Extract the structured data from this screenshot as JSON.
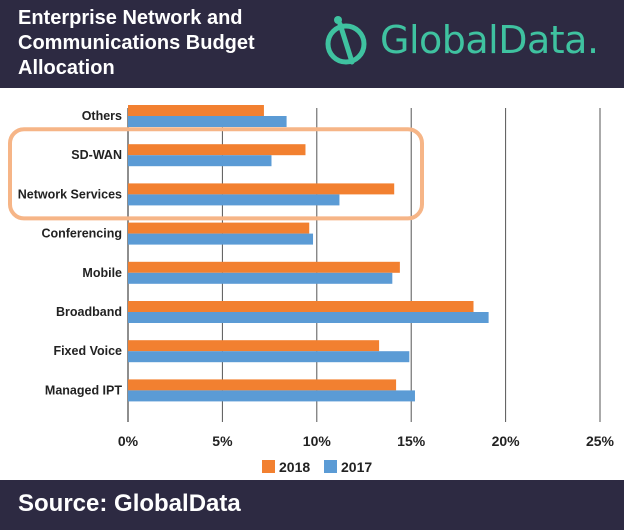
{
  "header": {
    "title_lines": [
      "Enterprise Network and",
      "Communications Budget",
      "Allocation"
    ],
    "logo_text": "GlobalData."
  },
  "footer": {
    "source": "Source: GlobalData"
  },
  "colors": {
    "2018": "#f28030",
    "2017": "#5b9bd5",
    "highlight": "#f6b587",
    "header_bg": "#2d2a42",
    "logo": "#3fc2a0"
  },
  "chart_data": {
    "type": "bar",
    "orientation": "horizontal",
    "categories": [
      "Others",
      "SD-WAN",
      "Network Services",
      "Conferencing",
      "Mobile",
      "Broadband",
      "Fixed Voice",
      "Managed IPT"
    ],
    "series": [
      {
        "name": "2018",
        "values": [
          7.2,
          9.4,
          14.1,
          9.6,
          14.4,
          18.3,
          13.3,
          14.2
        ]
      },
      {
        "name": "2017",
        "values": [
          8.4,
          7.6,
          11.2,
          9.8,
          14.0,
          19.1,
          14.9,
          15.2
        ]
      }
    ],
    "x_ticks": [
      "0%",
      "5%",
      "10%",
      "15%",
      "20%",
      "25%"
    ],
    "xlim": [
      0,
      25
    ],
    "grid": true,
    "legend": "bottom",
    "highlighted_categories": [
      "SD-WAN",
      "Network Services"
    ]
  }
}
